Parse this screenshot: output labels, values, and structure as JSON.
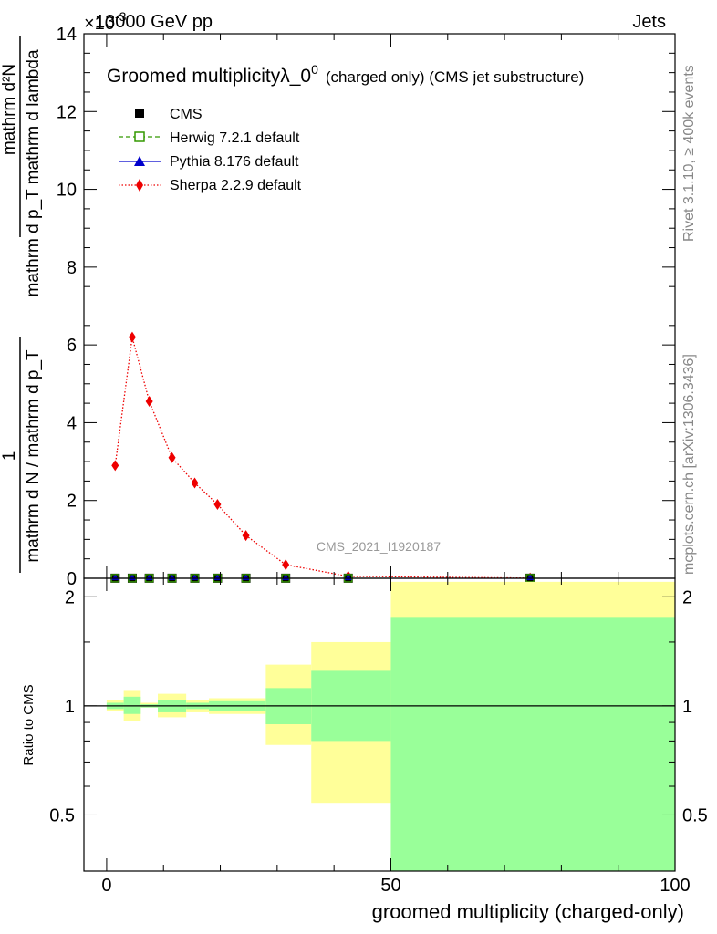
{
  "header": {
    "energy": "13000 GeV pp",
    "category": "Jets",
    "multiplier": "×10",
    "multiplier_exp": "-3"
  },
  "side": {
    "rivet": "Rivet 3.1.10, ≥ 400k events",
    "mcplots": "mcplots.cern.ch [arXiv:1306.3436]"
  },
  "watermark": "CMS_2021_I1920187",
  "colors": {
    "cms": "#000000",
    "herwig": "#339900",
    "pythia": "#0000cc",
    "sherpa": "#ee0000",
    "band_outer": "#ffff99",
    "band_inner": "#99ff99"
  },
  "chart_data": [
    {
      "type": "line",
      "title": "Groomed multiplicityλ_0",
      "title_sup": "0",
      "subtitle": "(charged only) (CMS jet substructure)",
      "ylabel_numerator": "mathrm d²N",
      "ylabel_fraction_one": "1",
      "ylabel_denominator": "mathrm d N / mathrm d p_T",
      "ylabel_main": "mathrm d p_T mathrm d lambda",
      "ylim": [
        0,
        14
      ],
      "yticks": [
        "0",
        "2",
        "4",
        "6",
        "8",
        "10",
        "12",
        "14"
      ],
      "xlim": [
        -4,
        100
      ],
      "legend": [
        "CMS",
        "Herwig 7.2.1 default",
        "Pythia 8.176 default",
        "Sherpa 2.2.9 default"
      ],
      "series": [
        {
          "name": "CMS",
          "marker": "square",
          "x": [
            1.5,
            4.5,
            7.5,
            11.5,
            15.5,
            19.5,
            24.5,
            31.5,
            42.5,
            74.5
          ],
          "y": [
            0.003,
            0.003,
            0.003,
            0.003,
            0.003,
            0.003,
            0.003,
            0.003,
            0.003,
            0.003
          ]
        },
        {
          "name": "Herwig 7.2.1 default",
          "marker": "open-square",
          "x": [
            1.5,
            4.5,
            7.5,
            11.5,
            15.5,
            19.5,
            24.5,
            31.5,
            42.5,
            74.5
          ],
          "y": [
            0.003,
            0.003,
            0.003,
            0.003,
            0.003,
            0.003,
            0.003,
            0.003,
            0.003,
            0.003
          ]
        },
        {
          "name": "Pythia 8.176 default",
          "marker": "triangle",
          "x": [
            1.5,
            4.5,
            7.5,
            11.5,
            15.5,
            19.5,
            24.5,
            31.5,
            42.5,
            74.5
          ],
          "y": [
            0.003,
            0.003,
            0.003,
            0.003,
            0.003,
            0.003,
            0.003,
            0.003,
            0.003,
            0.003
          ]
        },
        {
          "name": "Sherpa 2.2.9 default",
          "marker": "diamond",
          "x": [
            1.5,
            4.5,
            7.5,
            11.5,
            15.5,
            19.5,
            24.5,
            31.5,
            42.5,
            74.5
          ],
          "y": [
            2.9,
            6.2,
            4.55,
            3.1,
            2.45,
            1.9,
            1.1,
            0.35,
            0.05,
            0.005
          ]
        }
      ]
    },
    {
      "type": "area",
      "ylabel": "Ratio to CMS",
      "xlabel": "groomed multiplicity (charged-only)",
      "xlim": [
        -4,
        100
      ],
      "ylim": [
        0.35,
        2.25
      ],
      "xticks": [
        "0",
        "50",
        "100"
      ],
      "yticks": [
        "0.5",
        "1",
        "2"
      ],
      "bins": [
        {
          "lo": 0,
          "hi": 3,
          "outer": [
            0.97,
            1.04
          ],
          "inner": [
            0.98,
            1.02
          ]
        },
        {
          "lo": 3,
          "hi": 6,
          "outer": [
            0.91,
            1.1
          ],
          "inner": [
            0.95,
            1.06
          ]
        },
        {
          "lo": 6,
          "hi": 9,
          "outer": [
            0.99,
            1.02
          ],
          "inner": [
            0.99,
            1.01
          ]
        },
        {
          "lo": 9,
          "hi": 14,
          "outer": [
            0.93,
            1.08
          ],
          "inner": [
            0.96,
            1.04
          ]
        },
        {
          "lo": 14,
          "hi": 18,
          "outer": [
            0.96,
            1.04
          ],
          "inner": [
            0.98,
            1.02
          ]
        },
        {
          "lo": 18,
          "hi": 22,
          "outer": [
            0.95,
            1.05
          ],
          "inner": [
            0.97,
            1.03
          ]
        },
        {
          "lo": 22,
          "hi": 28,
          "outer": [
            0.95,
            1.05
          ],
          "inner": [
            0.97,
            1.03
          ]
        },
        {
          "lo": 28,
          "hi": 36,
          "outer": [
            0.78,
            1.3
          ],
          "inner": [
            0.89,
            1.12
          ]
        },
        {
          "lo": 36,
          "hi": 50,
          "outer": [
            0.54,
            1.5
          ],
          "inner": [
            0.8,
            1.25
          ]
        },
        {
          "lo": 50,
          "hi": 100,
          "outer": [
            0.35,
            2.2
          ],
          "inner": [
            0.35,
            1.75
          ]
        }
      ]
    }
  ]
}
